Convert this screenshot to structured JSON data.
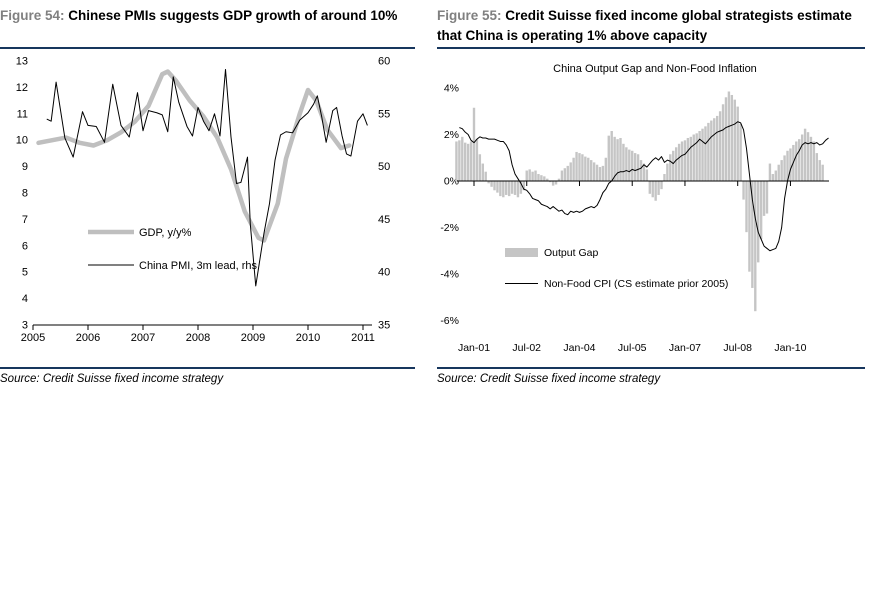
{
  "colors": {
    "rule_navy": "#17365D",
    "figure_label_gray": "#808080",
    "gdp_line_gray": "#BFBFBF",
    "bar_gray": "#C5C5C5",
    "line_black": "#000000"
  },
  "figure54": {
    "label": "Figure 54:",
    "title": "Chinese PMIs suggests GDP growth of around 10%",
    "source": "Source: Credit Suisse fixed income strategy",
    "chart_data": {
      "type": "line",
      "title": "",
      "x_ticks": [
        2005,
        2006,
        2007,
        2008,
        2009,
        2010,
        2011
      ],
      "left_axis": {
        "ticks": [
          13,
          12,
          11,
          10,
          9,
          8,
          7,
          6,
          5,
          4,
          3
        ],
        "range": [
          3,
          13
        ]
      },
      "right_axis": {
        "ticks": [
          60,
          55,
          50,
          45,
          40,
          35
        ],
        "range": [
          35,
          60
        ]
      },
      "legend": [
        "GDP, y/y%",
        "China PMI, 3m lead, rhs"
      ],
      "series": [
        {
          "name": "GDP, y/y%",
          "axis": "left",
          "style": "thick-gray",
          "points": [
            [
              2005.1,
              9.9
            ],
            [
              2005.35,
              10.0
            ],
            [
              2005.6,
              10.1
            ],
            [
              2005.85,
              9.9
            ],
            [
              2006.1,
              9.8
            ],
            [
              2006.35,
              10.0
            ],
            [
              2006.6,
              10.3
            ],
            [
              2006.85,
              10.7
            ],
            [
              2007.1,
              11.3
            ],
            [
              2007.35,
              12.5
            ],
            [
              2007.45,
              12.6
            ],
            [
              2007.6,
              12.25
            ],
            [
              2007.85,
              11.5
            ],
            [
              2008.1,
              10.9
            ],
            [
              2008.35,
              10.1
            ],
            [
              2008.6,
              8.9
            ],
            [
              2008.85,
              7.3
            ],
            [
              2009.1,
              6.3
            ],
            [
              2009.2,
              6.2
            ],
            [
              2009.45,
              7.6
            ],
            [
              2009.6,
              9.3
            ],
            [
              2009.85,
              11.0
            ],
            [
              2010.0,
              11.9
            ],
            [
              2010.15,
              11.5
            ],
            [
              2010.35,
              10.4
            ],
            [
              2010.6,
              9.7
            ],
            [
              2010.75,
              9.8
            ]
          ]
        },
        {
          "name": "China PMI, 3m lead, rhs",
          "axis": "right",
          "style": "thin-black",
          "points": [
            [
              2005.25,
              54.5
            ],
            [
              2005.33,
              54.3
            ],
            [
              2005.42,
              58.0
            ],
            [
              2005.58,
              52.7
            ],
            [
              2005.73,
              50.9
            ],
            [
              2005.9,
              55.2
            ],
            [
              2006.0,
              53.9
            ],
            [
              2006.15,
              53.8
            ],
            [
              2006.3,
              52.3
            ],
            [
              2006.45,
              57.8
            ],
            [
              2006.6,
              53.9
            ],
            [
              2006.75,
              52.8
            ],
            [
              2006.9,
              57.0
            ],
            [
              2007.0,
              53.4
            ],
            [
              2007.1,
              55.3
            ],
            [
              2007.25,
              55.1
            ],
            [
              2007.35,
              54.9
            ],
            [
              2007.45,
              53.3
            ],
            [
              2007.55,
              58.5
            ],
            [
              2007.65,
              56.1
            ],
            [
              2007.8,
              53.8
            ],
            [
              2007.9,
              52.9
            ],
            [
              2008.0,
              55.6
            ],
            [
              2008.1,
              54.3
            ],
            [
              2008.2,
              53.4
            ],
            [
              2008.3,
              55.0
            ],
            [
              2008.4,
              52.9
            ],
            [
              2008.5,
              59.2
            ],
            [
              2008.6,
              52.8
            ],
            [
              2008.7,
              48.4
            ],
            [
              2008.78,
              48.5
            ],
            [
              2008.9,
              50.9
            ],
            [
              2008.95,
              44.6
            ],
            [
              2009.05,
              38.7
            ],
            [
              2009.2,
              43.7
            ],
            [
              2009.3,
              46.5
            ],
            [
              2009.4,
              50.6
            ],
            [
              2009.5,
              53.0
            ],
            [
              2009.6,
              53.3
            ],
            [
              2009.72,
              53.2
            ],
            [
              2009.85,
              54.4
            ],
            [
              2010.0,
              55.1
            ],
            [
              2010.1,
              55.9
            ],
            [
              2010.17,
              56.7
            ],
            [
              2010.25,
              54.7
            ],
            [
              2010.33,
              52.3
            ],
            [
              2010.45,
              55.3
            ],
            [
              2010.52,
              55.6
            ],
            [
              2010.62,
              52.9
            ],
            [
              2010.7,
              51.2
            ],
            [
              2010.78,
              51.0
            ],
            [
              2010.9,
              54.3
            ],
            [
              2011.0,
              55.0
            ],
            [
              2011.08,
              53.9
            ]
          ]
        }
      ]
    }
  },
  "figure55": {
    "label": "Figure 55:",
    "title": "Credit Suisse fixed income global strategists estimate that China is operating 1% above capacity",
    "source": "Source: Credit Suisse fixed income strategy",
    "chart_data": {
      "type": "bar+line",
      "title": "China Output Gap and Non-Food Inflation",
      "x_tick_labels": [
        "Jan-01",
        "Jul-02",
        "Jan-04",
        "Jul-05",
        "Jan-07",
        "Jul-08",
        "Jan-10"
      ],
      "x_tick_months": [
        6,
        24,
        42,
        60,
        78,
        96,
        114
      ],
      "months_note": "index 0 = Jul-2000, monthly",
      "y_tick_labels": [
        "4%",
        "2%",
        "0%",
        "-2%",
        "-4%",
        "-6%"
      ],
      "y_tick_values": [
        4,
        2,
        0,
        -2,
        -4,
        -6
      ],
      "legend": [
        "Output Gap",
        "Non-Food CPI (CS estimate prior 2005)"
      ],
      "series": [
        {
          "name": "Output Gap",
          "type": "bar",
          "start_index": 0,
          "values": [
            1.7,
            1.75,
            1.9,
            1.65,
            1.6,
            1.7,
            3.15,
            1.8,
            1.15,
            0.75,
            0.4,
            -0.1,
            -0.25,
            -0.4,
            -0.5,
            -0.65,
            -0.7,
            -0.6,
            -0.65,
            -0.55,
            -0.6,
            -0.7,
            -0.55,
            -0.4,
            0.45,
            0.5,
            0.4,
            0.45,
            0.3,
            0.25,
            0.2,
            0.1,
            -0.05,
            -0.2,
            -0.15,
            0.1,
            0.45,
            0.55,
            0.65,
            0.8,
            1.0,
            1.25,
            1.2,
            1.15,
            1.05,
            1.0,
            0.9,
            0.8,
            0.7,
            0.6,
            0.65,
            1.0,
            1.95,
            2.15,
            1.9,
            1.8,
            1.85,
            1.6,
            1.45,
            1.35,
            1.3,
            1.2,
            1.15,
            0.9,
            0.75,
            0.5,
            -0.55,
            -0.7,
            -0.85,
            -0.6,
            -0.35,
            0.3,
            0.75,
            1.15,
            1.3,
            1.45,
            1.6,
            1.7,
            1.75,
            1.85,
            1.9,
            2.0,
            2.05,
            2.15,
            2.25,
            2.35,
            2.5,
            2.6,
            2.7,
            2.8,
            3.0,
            3.3,
            3.6,
            3.85,
            3.7,
            3.5,
            3.2,
            2.45,
            -0.8,
            -2.2,
            -3.9,
            -4.6,
            -5.6,
            -3.5,
            -2.5,
            -1.5,
            -1.4,
            0.75,
            0.3,
            0.45,
            0.7,
            0.9,
            1.1,
            1.3,
            1.4,
            1.55,
            1.7,
            1.8,
            2.0,
            2.25,
            2.1,
            1.9,
            1.7,
            1.2,
            0.9,
            0.7
          ]
        },
        {
          "name": "Non-Food CPI (CS estimate prior 2005)",
          "type": "line",
          "start_index": 1,
          "values": [
            2.3,
            2.25,
            2.1,
            2.0,
            1.75,
            1.65,
            1.8,
            1.9,
            1.85,
            1.85,
            1.8,
            1.8,
            1.8,
            1.75,
            1.7,
            1.7,
            1.55,
            1.3,
            0.7,
            0.3,
            0.1,
            -0.1,
            -0.35,
            -0.4,
            -0.55,
            -0.75,
            -0.8,
            -0.85,
            -1.0,
            -1.05,
            -1.1,
            -1.2,
            -1.1,
            -1.2,
            -1.3,
            -1.25,
            -1.4,
            -1.45,
            -1.3,
            -1.35,
            -1.3,
            -1.35,
            -1.3,
            -1.2,
            -1.15,
            -1.1,
            -1.15,
            -1.05,
            -0.8,
            -0.5,
            -0.35,
            -0.1,
            0.0,
            0.2,
            0.35,
            0.4,
            0.4,
            0.45,
            0.4,
            0.5,
            0.45,
            0.5,
            0.55,
            0.7,
            0.6,
            0.75,
            0.9,
            1.0,
            0.9,
            1.05,
            0.8,
            0.9,
            0.85,
            0.75,
            0.9,
            1.0,
            1.1,
            1.15,
            1.3,
            1.45,
            1.55,
            1.65,
            1.8,
            1.7,
            1.6,
            1.75,
            1.9,
            2.0,
            2.1,
            2.15,
            2.2,
            2.3,
            2.35,
            2.4,
            2.45,
            2.55,
            2.5,
            2.2,
            1.4,
            0.3,
            -0.8,
            -1.6,
            -2.2,
            -2.5,
            -2.8,
            -2.9,
            -3.0,
            -2.95,
            -2.9,
            -2.6,
            -2.0,
            -0.75,
            0.0,
            0.5,
            0.8,
            1.1,
            1.3,
            1.55,
            1.65,
            1.6,
            1.65,
            1.6,
            1.65,
            1.55,
            1.6,
            1.75,
            1.85
          ]
        }
      ]
    }
  }
}
